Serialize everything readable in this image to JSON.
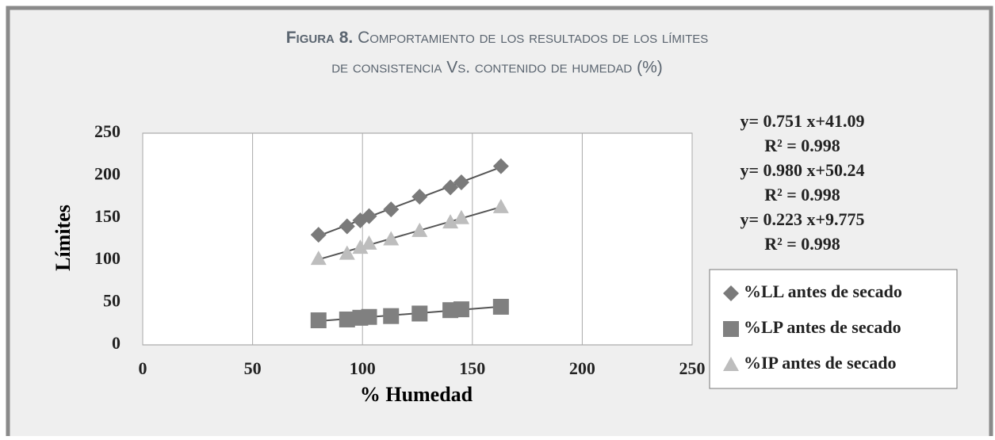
{
  "chart_data": {
    "type": "scatter",
    "title_label": "Figura 8.",
    "title_lines": [
      "Comportamiento de los resultados de los límites",
      "de consistencia Vs. contenido de humedad (%)"
    ],
    "x_label": "% Humedad",
    "y_label": "Límites",
    "xlim": [
      0,
      250
    ],
    "xticks": [
      0,
      50,
      100,
      150,
      200,
      250
    ],
    "ylim": [
      0,
      250
    ],
    "yticks": [
      0,
      50,
      100,
      150,
      200,
      250
    ],
    "grid": "vertical",
    "series": [
      {
        "name": "%LL antes de secado",
        "marker": "diamond",
        "color": "#7a7a7a",
        "x": [
          80,
          93,
          99,
          103,
          113,
          126,
          140,
          145,
          163
        ],
        "values": [
          130,
          140,
          147,
          152,
          160,
          175,
          186,
          192,
          211
        ]
      },
      {
        "name": "%LP antes de secado",
        "marker": "square",
        "color": "#808080",
        "x": [
          80,
          93,
          99,
          103,
          113,
          126,
          140,
          145,
          163
        ],
        "values": [
          29,
          30,
          32,
          33,
          34,
          37,
          41,
          42,
          45
        ]
      },
      {
        "name": "%IP antes de secado",
        "marker": "triangle",
        "color": "#bdbdbd",
        "x": [
          80,
          93,
          99,
          103,
          113,
          126,
          140,
          145,
          163
        ],
        "values": [
          102,
          108,
          115,
          120,
          125,
          135,
          145,
          150,
          163
        ]
      }
    ],
    "annotations": [
      "y= 0.751 x+41.09",
      "R² = 0.998",
      "y= 0.980 x+50.24",
      "R² = 0.998",
      "y= 0.223 x+9.775",
      "R² = 0.998"
    ]
  }
}
